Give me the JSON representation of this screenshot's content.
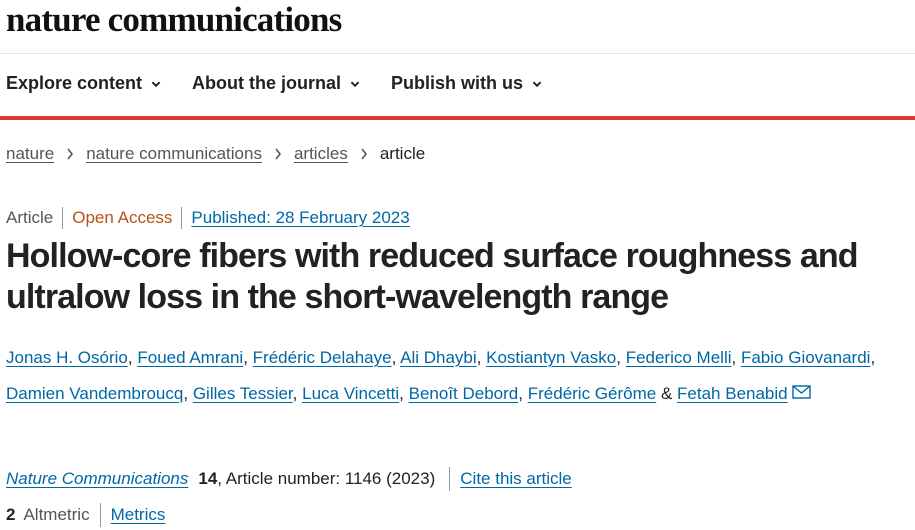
{
  "header": {
    "logo": "nature communications"
  },
  "nav": {
    "items": [
      "Explore content",
      "About the journal",
      "Publish with us"
    ]
  },
  "breadcrumbs": [
    "nature",
    "nature communications",
    "articles",
    "article"
  ],
  "article": {
    "type": "Article",
    "access": "Open Access",
    "published": "Published: 28 February 2023",
    "title": "Hollow-core fibers with reduced surface roughness and ultralow loss in the short-wavelength range",
    "authors": [
      "Jonas H. Osório",
      "Foued Amrani",
      "Frédéric Delahaye",
      "Ali Dhaybi",
      "Kostiantyn Vasko",
      "Federico Melli",
      "Fabio Giovanardi",
      "Damien Vandembroucq",
      "Gilles Tessier",
      "Luca Vincetti",
      "Benoît Debord",
      "Frédéric Gérôme",
      "Fetah Benabid"
    ],
    "author_separator": ",",
    "author_last_separator": "&",
    "journal": "Nature Communications",
    "volume": "14",
    "article_info": ", Article number: 1146 (2023)",
    "cite": "Cite this article",
    "altmetric_score": "2",
    "altmetric_label": "Altmetric",
    "metrics": "Metrics"
  }
}
